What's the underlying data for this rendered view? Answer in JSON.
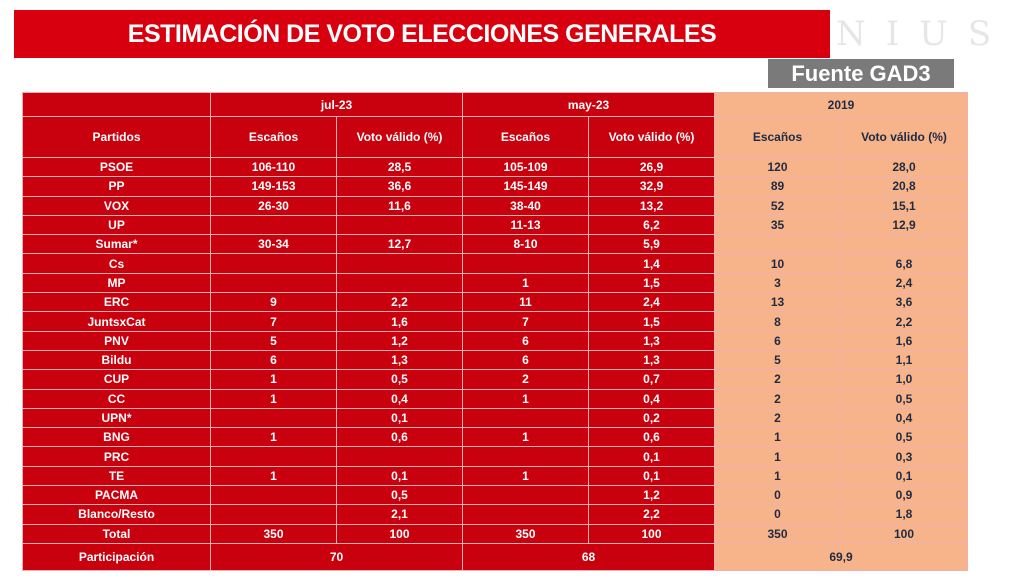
{
  "header": {
    "title": "ESTIMACIÓN DE VOTO ELECCIONES GENERALES",
    "logo": "NIUS",
    "source": "Fuente GAD3"
  },
  "table": {
    "periods": [
      "jul-23",
      "may-23",
      "2019"
    ],
    "col_party": "Partidos",
    "col_seats": "Escaños",
    "col_vote": "Voto válido (%)",
    "rows": [
      {
        "party": "PSOE",
        "j_s": "106-110",
        "j_v": "28,5",
        "m_s": "105-109",
        "m_v": "26,9",
        "e_s": "120",
        "e_v": "28,0"
      },
      {
        "party": "PP",
        "j_s": "149-153",
        "j_v": "36,6",
        "m_s": "145-149",
        "m_v": "32,9",
        "e_s": "89",
        "e_v": "20,8"
      },
      {
        "party": "VOX",
        "j_s": "26-30",
        "j_v": "11,6",
        "m_s": "38-40",
        "m_v": "13,2",
        "e_s": "52",
        "e_v": "15,1"
      },
      {
        "party": "UP",
        "j_s": "",
        "j_v": "",
        "m_s": "11-13",
        "m_v": "6,2",
        "e_s": "35",
        "e_v": "12,9"
      },
      {
        "party": "Sumar*",
        "j_s": "30-34",
        "j_v": "12,7",
        "m_s": "8-10",
        "m_v": "5,9",
        "e_s": "",
        "e_v": ""
      },
      {
        "party": "Cs",
        "j_s": "",
        "j_v": "",
        "m_s": "",
        "m_v": "1,4",
        "e_s": "10",
        "e_v": "6,8"
      },
      {
        "party": "MP",
        "j_s": "",
        "j_v": "",
        "m_s": "1",
        "m_v": "1,5",
        "e_s": "3",
        "e_v": "2,4"
      },
      {
        "party": "ERC",
        "j_s": "9",
        "j_v": "2,2",
        "m_s": "11",
        "m_v": "2,4",
        "e_s": "13",
        "e_v": "3,6"
      },
      {
        "party": "JuntsxCat",
        "j_s": "7",
        "j_v": "1,6",
        "m_s": "7",
        "m_v": "1,5",
        "e_s": "8",
        "e_v": "2,2"
      },
      {
        "party": "PNV",
        "j_s": "5",
        "j_v": "1,2",
        "m_s": "6",
        "m_v": "1,3",
        "e_s": "6",
        "e_v": "1,6"
      },
      {
        "party": "Bildu",
        "j_s": "6",
        "j_v": "1,3",
        "m_s": "6",
        "m_v": "1,3",
        "e_s": "5",
        "e_v": "1,1"
      },
      {
        "party": "CUP",
        "j_s": "1",
        "j_v": "0,5",
        "m_s": "2",
        "m_v": "0,7",
        "e_s": "2",
        "e_v": "1,0"
      },
      {
        "party": "CC",
        "j_s": "1",
        "j_v": "0,4",
        "m_s": "1",
        "m_v": "0,4",
        "e_s": "2",
        "e_v": "0,5"
      },
      {
        "party": "UPN*",
        "j_s": "",
        "j_v": "0,1",
        "m_s": "",
        "m_v": "0,2",
        "e_s": "2",
        "e_v": "0,4"
      },
      {
        "party": "BNG",
        "j_s": "1",
        "j_v": "0,6",
        "m_s": "1",
        "m_v": "0,6",
        "e_s": "1",
        "e_v": "0,5"
      },
      {
        "party": "PRC",
        "j_s": "",
        "j_v": "",
        "m_s": "",
        "m_v": "0,1",
        "e_s": "1",
        "e_v": "0,3"
      },
      {
        "party": "TE",
        "j_s": "1",
        "j_v": "0,1",
        "m_s": "1",
        "m_v": "0,1",
        "e_s": "1",
        "e_v": "0,1"
      },
      {
        "party": "PACMA",
        "j_s": "",
        "j_v": "0,5",
        "m_s": "",
        "m_v": "1,2",
        "e_s": "0",
        "e_v": "0,9"
      },
      {
        "party": "Blanco/Resto",
        "j_s": "",
        "j_v": "2,1",
        "m_s": "",
        "m_v": "2,2",
        "e_s": "0",
        "e_v": "1,8"
      },
      {
        "party": "Total",
        "j_s": "350",
        "j_v": "100",
        "m_s": "350",
        "m_v": "100",
        "e_s": "350",
        "e_v": "100"
      }
    ],
    "participation": {
      "label": "Participación",
      "jul": "70",
      "may": "68",
      "e2019": "69,9"
    }
  },
  "colors": {
    "red": "#c9000d",
    "title_red": "#d8000f",
    "orange": "#f7b48a"
  }
}
